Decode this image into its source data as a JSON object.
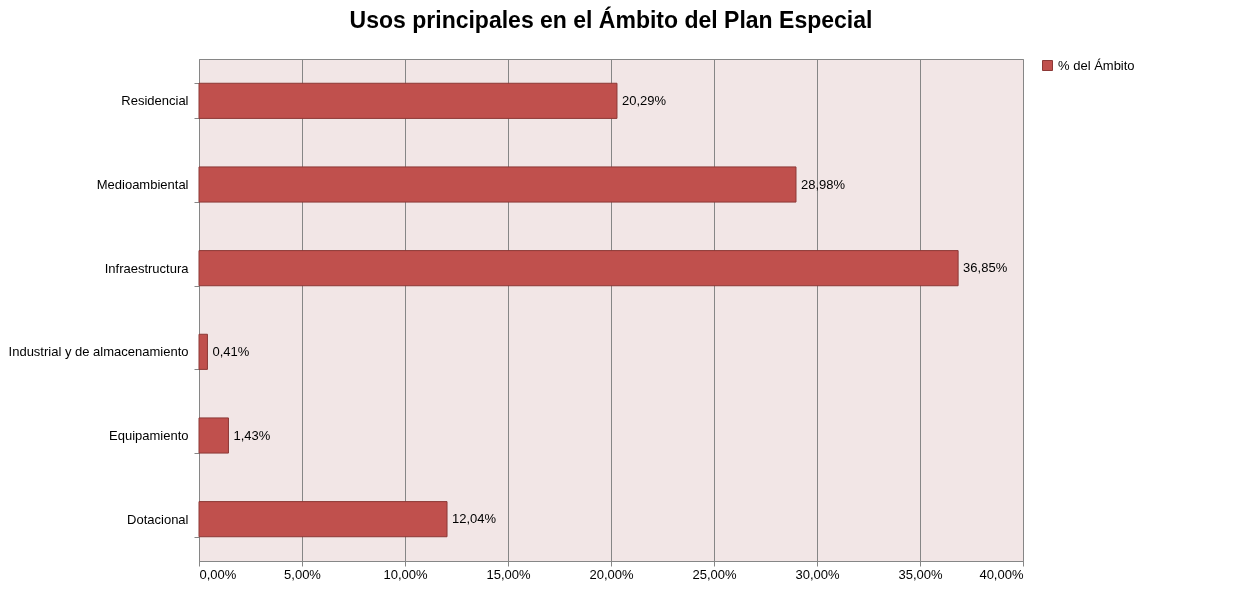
{
  "chart_data": {
    "type": "bar",
    "orientation": "horizontal",
    "title": "Usos principales en el Ámbito del Plan Especial",
    "categories": [
      "Residencial",
      "Medioambiental",
      "Infraestructura",
      "Industrial y de almacenamiento",
      "Equipamiento",
      "Dotacional"
    ],
    "series": [
      {
        "name": "% del Ámbito",
        "color": "#c0504d",
        "values": [
          20.29,
          28.98,
          36.85,
          0.41,
          1.43,
          12.04
        ],
        "value_labels": [
          "20,29%",
          "28,98%",
          "36,85%",
          "0,41%",
          "1,43%",
          "12,04%"
        ]
      }
    ],
    "xlim": [
      0,
      40
    ],
    "xticks": [
      {
        "value": 0,
        "label": "0,00%"
      },
      {
        "value": 5,
        "label": "5,00%"
      },
      {
        "value": 10,
        "label": "10,00%"
      },
      {
        "value": 15,
        "label": "15,00%"
      },
      {
        "value": 20,
        "label": "20,00%"
      },
      {
        "value": 25,
        "label": "25,00%"
      },
      {
        "value": 30,
        "label": "30,00%"
      },
      {
        "value": 35,
        "label": "35,00%"
      },
      {
        "value": 40,
        "label": "40,00%"
      }
    ],
    "grid": "x",
    "legend": "right"
  }
}
